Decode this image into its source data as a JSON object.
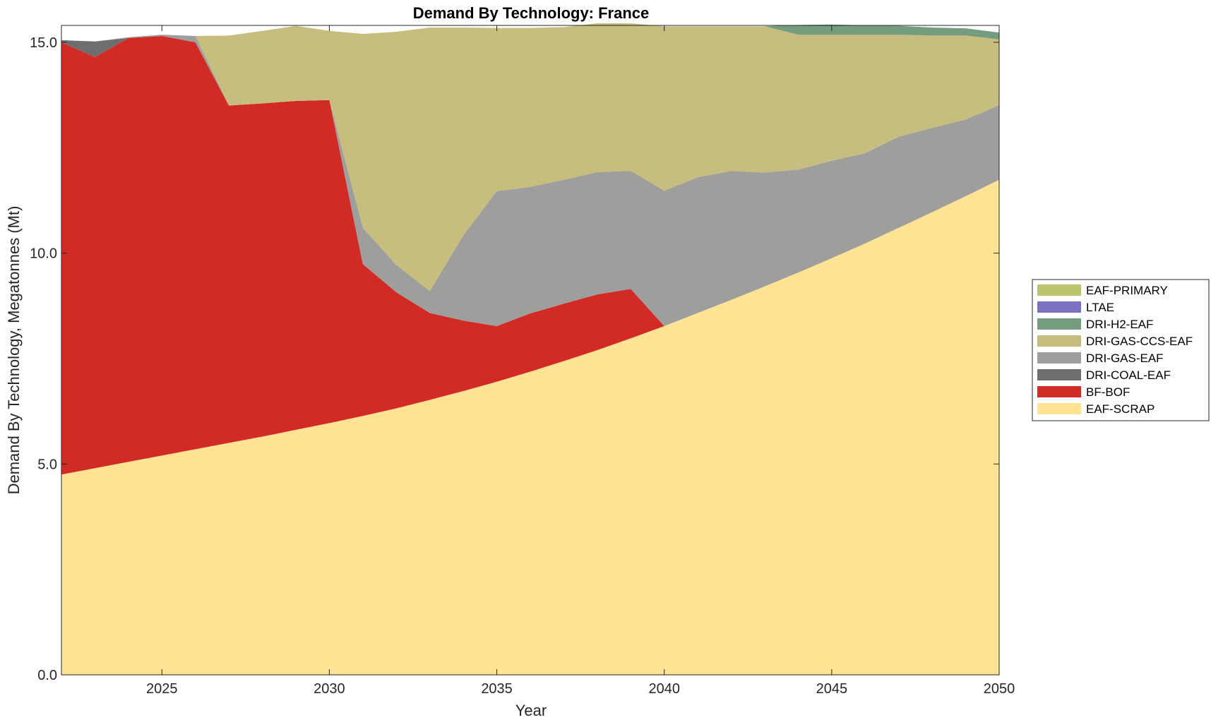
{
  "chart_data": {
    "type": "area",
    "stacked": true,
    "title": "Demand By Technology: France",
    "xlabel": "Year",
    "ylabel": "Demand By Technology, Megatonnes (Mt)",
    "xlim": [
      2022,
      2050
    ],
    "ylim": [
      0,
      15.4
    ],
    "xticks": [
      2025,
      2030,
      2035,
      2040,
      2045,
      2050
    ],
    "yticks": [
      0,
      5,
      10,
      15
    ],
    "ytick_labels": [
      "0.0",
      "5.0",
      "10.0",
      "15.0"
    ],
    "grid": false,
    "legend_position": "right",
    "x": [
      2022,
      2023,
      2024,
      2025,
      2026,
      2027,
      2028,
      2029,
      2030,
      2031,
      2032,
      2033,
      2034,
      2035,
      2036,
      2037,
      2038,
      2039,
      2040,
      2041,
      2042,
      2043,
      2044,
      2045,
      2046,
      2047,
      2048,
      2049,
      2050
    ],
    "series": [
      {
        "name": "EAF-SCRAP",
        "color": "#FEE394",
        "values": [
          4.75,
          4.9,
          5.05,
          5.2,
          5.35,
          5.5,
          5.65,
          5.81,
          5.97,
          6.14,
          6.32,
          6.52,
          6.73,
          6.95,
          7.19,
          7.44,
          7.7,
          7.98,
          8.27,
          8.58,
          8.89,
          9.21,
          9.54,
          9.88,
          10.23,
          10.6,
          10.97,
          11.35,
          11.74
        ]
      },
      {
        "name": "BF-BOF",
        "color": "#D22A24",
        "values": [
          10.25,
          9.75,
          10.05,
          9.95,
          9.65,
          8.0,
          7.9,
          7.8,
          7.66,
          3.6,
          2.75,
          2.06,
          1.67,
          1.32,
          1.38,
          1.36,
          1.32,
          1.17,
          0.0,
          0,
          0,
          0,
          0,
          0,
          0,
          0,
          0,
          0,
          0
        ]
      },
      {
        "name": "DRI-COAL-EAF",
        "color": "#6E6E6E",
        "values": [
          0.05,
          0.37,
          0.0,
          0.0,
          0.0,
          0,
          0,
          0,
          0,
          0,
          0,
          0,
          0,
          0,
          0,
          0,
          0,
          0,
          0,
          0,
          0,
          0,
          0,
          0,
          0,
          0,
          0,
          0,
          0
        ]
      },
      {
        "name": "DRI-GAS-EAF",
        "color": "#9E9E9D",
        "values": [
          0.0,
          0.0,
          0.02,
          0.03,
          0.15,
          0.0,
          0.0,
          0.0,
          0.0,
          0.86,
          0.65,
          0.52,
          2.02,
          3.2,
          3.0,
          2.94,
          2.9,
          2.8,
          3.21,
          3.22,
          3.06,
          2.7,
          2.44,
          2.31,
          2.14,
          2.16,
          2.0,
          1.82,
          1.77
        ]
      },
      {
        "name": "DRI-GAS-CCS-EAF",
        "color": "#C6BD7E",
        "values": [
          0.0,
          0.0,
          0.0,
          0.0,
          0.0,
          1.66,
          1.72,
          1.78,
          1.64,
          4.6,
          5.53,
          6.25,
          4.93,
          3.87,
          3.77,
          3.62,
          3.53,
          3.5,
          3.9,
          3.58,
          3.43,
          3.47,
          3.2,
          2.99,
          2.81,
          2.42,
          2.19,
          1.99,
          1.56
        ]
      },
      {
        "name": "DRI-H2-EAF",
        "color": "#759C7F",
        "values": [
          0,
          0,
          0,
          0,
          0,
          0,
          0,
          0,
          0,
          0,
          0,
          0,
          0,
          0,
          0,
          0,
          0,
          0,
          0,
          0,
          0,
          0,
          0.23,
          0.24,
          0.22,
          0.21,
          0.19,
          0.17,
          0.16
        ]
      },
      {
        "name": "LTAE",
        "color": "#7A72C0",
        "values": [
          0,
          0,
          0,
          0,
          0,
          0,
          0,
          0,
          0,
          0,
          0,
          0,
          0,
          0,
          0,
          0,
          0,
          0,
          0,
          0,
          0,
          0,
          0,
          0,
          0,
          0,
          0,
          0,
          0
        ]
      },
      {
        "name": "EAF-PRIMARY",
        "color": "#BCC46E",
        "values": [
          0,
          0,
          0,
          0,
          0,
          0,
          0,
          0,
          0,
          0,
          0,
          0,
          0,
          0,
          0,
          0,
          0,
          0,
          0,
          0,
          0,
          0,
          0,
          0,
          0,
          0,
          0,
          0,
          0
        ]
      }
    ]
  }
}
